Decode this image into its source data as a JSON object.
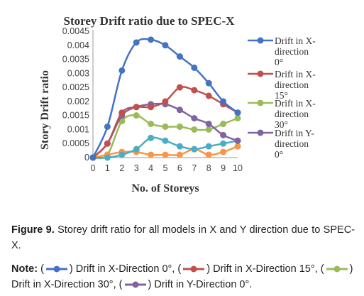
{
  "chart_data": {
    "type": "line",
    "title": "Storey Drift ratio due to SPEC-X",
    "xlabel": "No. of Storeys",
    "ylabel": "Story Drift ratio",
    "x": [
      0,
      1,
      2,
      3,
      4,
      5,
      6,
      7,
      8,
      9,
      10
    ],
    "xlim": [
      0,
      10
    ],
    "ylim": [
      0,
      0.0045
    ],
    "yticks": [
      "0",
      "0.0005",
      "0.001",
      "0.0015",
      "0.002",
      "0.0025",
      "0.003",
      "0.0035",
      "0.004",
      "0.0045"
    ],
    "ytick_values": [
      0,
      0.0005,
      0.001,
      0.0015,
      0.002,
      0.0025,
      0.003,
      0.0035,
      0.004,
      0.0045
    ],
    "xticks": [
      "0",
      "1",
      "2",
      "3",
      "4",
      "5",
      "6",
      "7",
      "8",
      "9",
      "10"
    ],
    "grid": false,
    "legend_position": "right",
    "series": [
      {
        "name": "Drift in X-direction 0°",
        "legend_lines": [
          "Drift in X-",
          "direction",
          "0°"
        ],
        "color": "#4472C4",
        "values": [
          0,
          0.0011,
          0.0031,
          0.0041,
          0.0042,
          0.004,
          0.0036,
          0.0032,
          0.00265,
          0.002,
          0.0016
        ]
      },
      {
        "name": "Drift in X-direction 15°",
        "legend_lines": [
          "Drift in X-",
          "direction",
          "15°"
        ],
        "color": "#C0504D",
        "values": [
          0,
          0.0005,
          0.0016,
          0.0018,
          0.0018,
          0.002,
          0.0025,
          0.0024,
          0.0022,
          0.0019,
          0.0016
        ]
      },
      {
        "name": "Drift in X-direction 30°",
        "legend_lines": [
          "Drift in X-",
          "direction",
          "30°"
        ],
        "color": "#9BBB59",
        "values": [
          0,
          0.0001,
          0.0013,
          0.0015,
          0.0012,
          0.0011,
          0.0011,
          0.001,
          0.001,
          0.0012,
          0.0014
        ]
      },
      {
        "name": "Drift in Y-direction 0°",
        "legend_lines": [
          "Drift in Y-",
          "direction",
          "0°"
        ],
        "color": "#8064A2",
        "values": [
          0,
          0.0005,
          0.0015,
          0.0018,
          0.0019,
          0.0019,
          0.0017,
          0.0014,
          0.0012,
          0.0008,
          0.0006
        ]
      },
      {
        "name": "",
        "legend_lines": [],
        "color": "#4BACC6",
        "values": [
          0,
          0.0,
          0.0001,
          0.0003,
          0.0007,
          0.0006,
          0.0004,
          0.0003,
          0.0004,
          0.0005,
          0.0006
        ]
      },
      {
        "name": "",
        "legend_lines": [],
        "color": "#F79646",
        "values": [
          0,
          0.0001,
          0.0002,
          0.0002,
          0.0001,
          0.0001,
          0.0001,
          0.0003,
          0.0001,
          0.0002,
          0.0004
        ]
      }
    ]
  },
  "caption": {
    "label": "Figure 9.",
    "text": " Storey drift ratio for all models in X and Y direction due to SPEC-X."
  },
  "note": {
    "label": "Note:",
    "items": [
      {
        "pre": " (",
        "post": ") Drift in X-Direction 0°, ",
        "color": "#4472C4"
      },
      {
        "pre": "(",
        "post": ") Drift in X-Direction 15°, ",
        "color": "#C0504D"
      },
      {
        "pre": "(",
        "post": ") Drift in X-Direction 30°, ",
        "color": "#9BBB59"
      },
      {
        "pre": "(",
        "post": ") Drift in Y-Direction 0°.",
        "color": "#8064A2"
      }
    ]
  }
}
